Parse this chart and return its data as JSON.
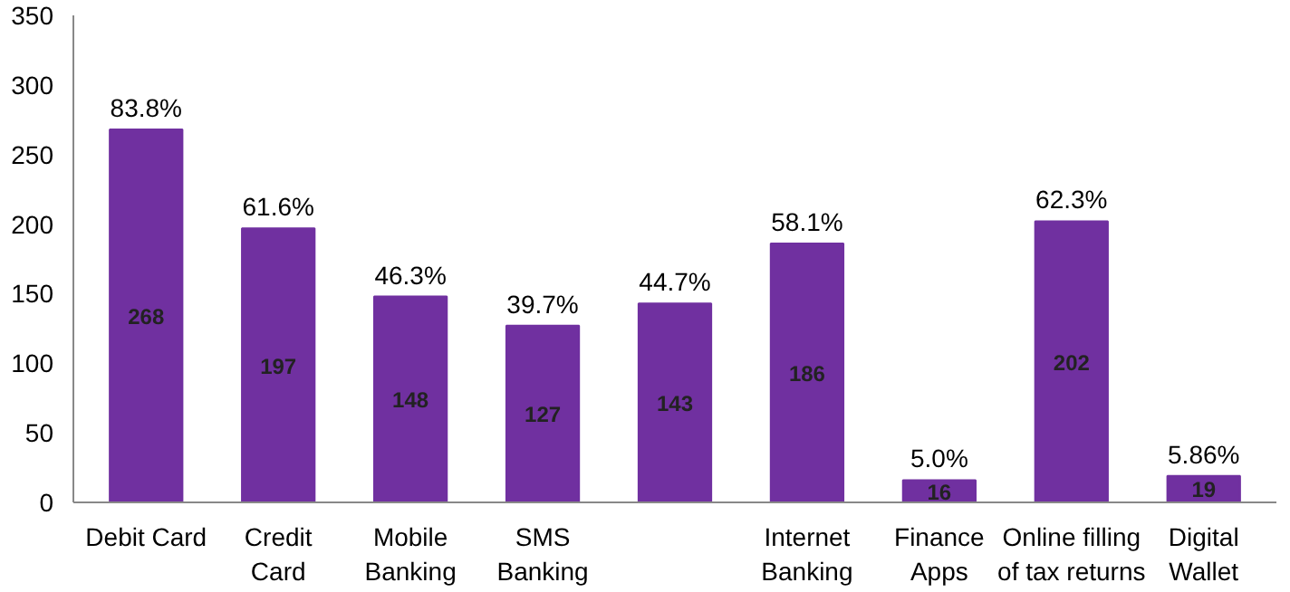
{
  "chart_data": {
    "type": "bar",
    "categories": [
      "Debit Card",
      "Credit\nCard",
      "Mobile\nBanking",
      "SMS\nBanking",
      null,
      "Internet\nBanking",
      "Finance\nApps",
      "Online filling\nof tax returns",
      "Digital\nWallet"
    ],
    "values": [
      268,
      197,
      148,
      127,
      143,
      186,
      16,
      202,
      19
    ],
    "value_labels": [
      "268",
      "197",
      "148",
      "127",
      "143",
      "186",
      "16",
      "202",
      "19"
    ],
    "annotations": [
      {
        "text": "83.8%",
        "x": "Debit Card",
        "y": 268
      },
      {
        "text": "61.6%",
        "x": "Credit\nCard",
        "y": 197
      },
      {
        "text": "46.3%",
        "x": "Mobile\nBanking",
        "y": 148
      },
      {
        "text": "39.7%",
        "x": "SMS\nBanking",
        "y": 127
      },
      {
        "text": "44.7%",
        "y": 143
      },
      {
        "text": "58.1%",
        "x": "Internet\nBanking",
        "y": 186
      },
      {
        "text": "5.0%",
        "x": "Finance\nApps",
        "y": 16
      },
      {
        "text": "62.3%",
        "x": "Online filling\nof tax returns",
        "y": 202
      },
      {
        "text": "5.86%",
        "x": "Digital\nWallet",
        "y": 19
      }
    ],
    "color": "#7030a0",
    "ylim": [
      0,
      350
    ],
    "yticks": [
      0,
      50,
      100,
      150,
      200,
      250,
      300,
      350
    ],
    "grid": false
  }
}
